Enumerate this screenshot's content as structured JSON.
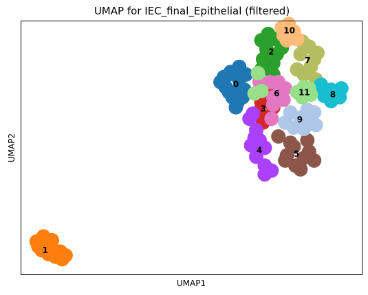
{
  "chart_data": {
    "type": "scatter",
    "title": "UMAP for IEC_final_Epithelial (filtered)",
    "xlabel": "UMAP1",
    "ylabel": "UMAP2",
    "ticks": false,
    "grid": false,
    "legend": "on data",
    "xlim": [
      0,
      100
    ],
    "ylim": [
      0,
      100
    ],
    "clusters": [
      {
        "name": "0",
        "color": "#1f77b4",
        "label_at": [
          63.0,
          75.2
        ],
        "points": [
          [
            58.5,
            76
          ],
          [
            61,
            79
          ],
          [
            60,
            74
          ],
          [
            62.5,
            72
          ],
          [
            64,
            77
          ],
          [
            62,
            70
          ],
          [
            63.5,
            68
          ],
          [
            61.5,
            80
          ],
          [
            64,
            82
          ],
          [
            65.5,
            73
          ],
          [
            63,
            66
          ],
          [
            66,
            79
          ],
          [
            59.5,
            78
          ],
          [
            65,
            70
          ],
          [
            61,
            72
          ]
        ]
      },
      {
        "name": "1",
        "color": "#ff7f0e",
        "label_at": [
          7.0,
          9.5
        ],
        "points": [
          [
            4.5,
            13
          ],
          [
            6.5,
            15
          ],
          [
            5,
            11
          ],
          [
            7.5,
            12
          ],
          [
            9,
            10.5
          ],
          [
            8,
            8
          ],
          [
            10,
            7
          ],
          [
            12,
            6
          ],
          [
            11.5,
            9
          ],
          [
            6,
            9.5
          ],
          [
            9,
            13.5
          ],
          [
            13,
            7.5
          ]
        ]
      },
      {
        "name": "2",
        "color": "#2ca02c",
        "label_at": [
          73.4,
          87.9
        ],
        "points": [
          [
            70.5,
            92.5
          ],
          [
            72.5,
            95
          ],
          [
            74.5,
            93
          ],
          [
            72,
            89
          ],
          [
            75,
            87
          ],
          [
            71,
            85
          ],
          [
            74,
            83.5
          ],
          [
            73,
            81
          ],
          [
            76.5,
            89.5
          ],
          [
            70.5,
            81
          ],
          [
            74,
            79
          ]
        ]
      },
      {
        "name": "3",
        "color": "#d62728",
        "label_at": [
          71.1,
          65.5
        ],
        "points": [
          [
            70.5,
            68
          ],
          [
            72.5,
            70
          ],
          [
            69.5,
            64
          ],
          [
            72,
            62
          ],
          [
            74,
            66
          ],
          [
            71,
            60
          ],
          [
            73.5,
            72
          ],
          [
            70,
            71
          ]
        ]
      },
      {
        "name": "4",
        "color": "#aa40fc",
        "label_at": [
          69.9,
          49.1
        ],
        "points": [
          [
            69,
            57
          ],
          [
            68.5,
            54
          ],
          [
            67.5,
            51
          ],
          [
            69,
            46.5
          ],
          [
            71.5,
            50
          ],
          [
            70,
            53
          ],
          [
            71.5,
            43
          ],
          [
            73.5,
            41
          ],
          [
            71.5,
            39.5
          ],
          [
            67,
            61.5
          ],
          [
            68,
            63.5
          ]
        ]
      },
      {
        "name": "5",
        "color": "#8c564b",
        "label_at": [
          80.8,
          47.6
        ],
        "points": [
          [
            78,
            47
          ],
          [
            80,
            50.5
          ],
          [
            83,
            46
          ],
          [
            80.5,
            43
          ],
          [
            84,
            53
          ],
          [
            84.5,
            48.5
          ],
          [
            82,
            41.5
          ],
          [
            79,
            52
          ],
          [
            86,
            45
          ],
          [
            75.5,
            54.5
          ],
          [
            77.5,
            45
          ]
        ]
      },
      {
        "name": "6",
        "color": "#e377c2",
        "label_at": [
          75.0,
          71.4
        ],
        "points": [
          [
            74,
            70
          ],
          [
            76,
            73
          ],
          [
            77,
            69
          ],
          [
            74,
            67
          ],
          [
            73,
            76
          ],
          [
            75.5,
            76
          ],
          [
            70,
            76
          ],
          [
            73.5,
            61.5
          ],
          [
            77.5,
            73.5
          ]
        ]
      },
      {
        "name": "7",
        "color": "#b5bd61",
        "label_at": [
          84.1,
          84.5
        ],
        "points": [
          [
            82,
            87
          ],
          [
            84.5,
            90
          ],
          [
            86,
            85
          ],
          [
            81,
            81
          ],
          [
            85,
            82
          ],
          [
            86.5,
            77
          ],
          [
            83,
            79
          ],
          [
            82.5,
            92
          ],
          [
            87,
            87.5
          ]
        ]
      },
      {
        "name": "8",
        "color": "#17becf",
        "label_at": [
          91.5,
          71.0
        ],
        "points": [
          [
            88,
            75
          ],
          [
            91,
            73
          ],
          [
            93.5,
            70
          ],
          [
            91,
            68.5
          ],
          [
            89,
            70.5
          ],
          [
            94,
            73.5
          ],
          [
            87,
            73
          ]
        ]
      },
      {
        "name": "9",
        "color": "#aec7e8",
        "label_at": [
          81.8,
          61.1
        ],
        "points": [
          [
            79,
            64
          ],
          [
            82,
            62
          ],
          [
            84.5,
            60
          ],
          [
            80,
            58
          ],
          [
            83,
            57.5
          ],
          [
            86,
            64
          ],
          [
            77.5,
            60
          ],
          [
            84,
            65
          ],
          [
            86.5,
            59
          ]
        ]
      },
      {
        "name": "10",
        "color": "#ffbb78",
        "label_at": [
          78.7,
          96.3
        ],
        "points": [
          [
            76.5,
            97.5
          ],
          [
            78.5,
            99
          ],
          [
            80,
            96
          ],
          [
            77,
            94.5
          ],
          [
            81,
            93
          ],
          [
            78,
            92.5
          ]
        ]
      },
      {
        "name": "11",
        "color": "#98df8a",
        "label_at": [
          83.1,
          71.9
        ],
        "points": [
          [
            81,
            72
          ],
          [
            83,
            74
          ],
          [
            85,
            71
          ],
          [
            82.5,
            70
          ],
          [
            84.5,
            73.5
          ],
          [
            68.5,
            71.5
          ],
          [
            69.5,
            79.5
          ],
          [
            70.5,
            72.5
          ]
        ]
      }
    ]
  }
}
